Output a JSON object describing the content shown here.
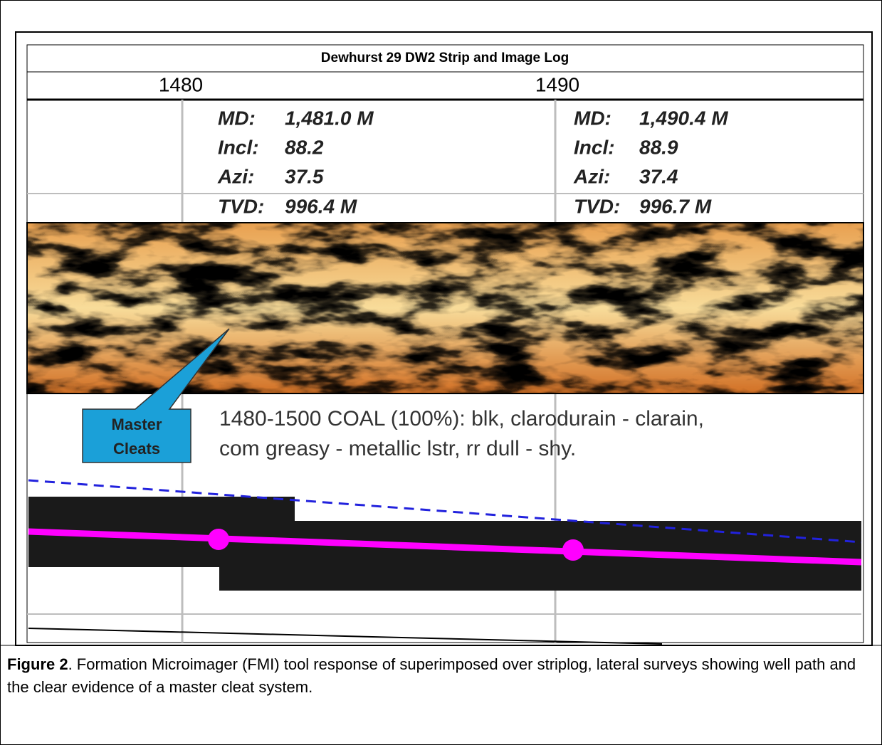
{
  "figure": {
    "log_title": "Dewhurst 29 DW2 Strip and Image Log",
    "depths": [
      "1480",
      "1490"
    ],
    "surveys": [
      {
        "md_label": "MD:",
        "md": "1,481.0 M",
        "incl_label": "Incl:",
        "incl": "88.2",
        "azi_label": "Azi:",
        "azi": "37.5",
        "tvd_label": "TVD:",
        "tvd": "996.4 M"
      },
      {
        "md_label": "MD:",
        "md": "1,490.4 M",
        "incl_label": "Incl:",
        "incl": "88.9",
        "azi_label": "Azi:",
        "azi": "37.4",
        "tvd_label": "TVD:",
        "tvd": "996.7 M"
      }
    ],
    "description": [
      "1480-1500 COAL (100%): blk, clarodurain - clarain,",
      "com greasy - metallic lstr, rr dull - shy."
    ],
    "callout": [
      "Master",
      "Cleats"
    ]
  },
  "caption": {
    "label": "Figure 2",
    "text": ". Formation Microimager (FMI) tool response of superimposed over striplog, lateral surveys showing well path and the clear evidence of a master cleat system."
  }
}
